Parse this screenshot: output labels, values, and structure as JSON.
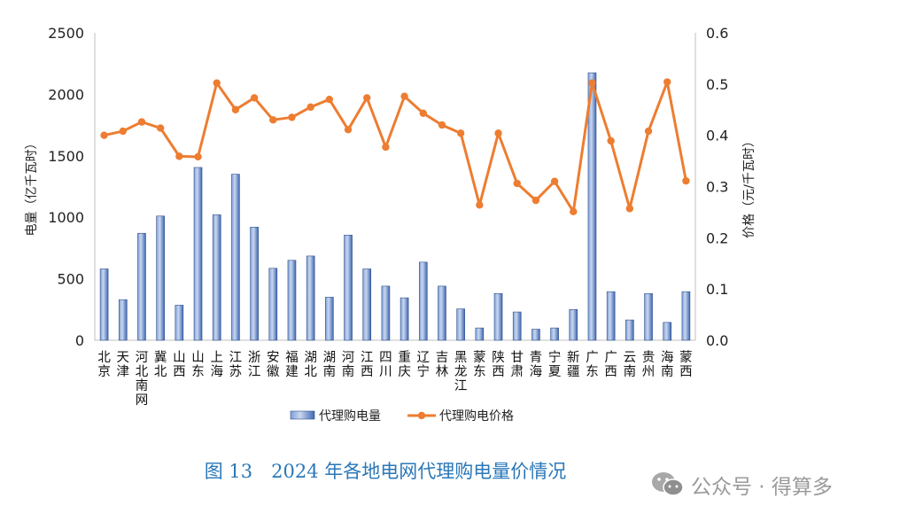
{
  "chart_data": {
    "type": "bar+line",
    "categories": [
      "北京",
      "天津",
      "河北南网",
      "冀北",
      "山西",
      "山东",
      "上海",
      "江苏",
      "浙江",
      "安徽",
      "福建",
      "湖北",
      "湖南",
      "河南",
      "江西",
      "四川",
      "重庆",
      "辽宁",
      "吉林",
      "黑龙江",
      "蒙东",
      "陕西",
      "甘肃",
      "青海",
      "宁夏",
      "新疆",
      "广东",
      "广西",
      "云南",
      "贵州",
      "海南",
      "蒙西"
    ],
    "series": [
      {
        "name": "代理购电量",
        "type": "bar",
        "axis": "left",
        "values": [
          580,
          330,
          870,
          1010,
          285,
          1405,
          1020,
          1350,
          920,
          585,
          650,
          685,
          350,
          855,
          580,
          440,
          345,
          635,
          440,
          255,
          100,
          380,
          230,
          90,
          100,
          250,
          2175,
          395,
          165,
          380,
          145,
          395
        ]
      },
      {
        "name": "代理购电价格",
        "type": "line",
        "axis": "right",
        "values": [
          0.4,
          0.408,
          0.426,
          0.414,
          0.359,
          0.358,
          0.502,
          0.45,
          0.473,
          0.43,
          0.435,
          0.455,
          0.47,
          0.411,
          0.473,
          0.377,
          0.476,
          0.443,
          0.42,
          0.404,
          0.264,
          0.404,
          0.306,
          0.273,
          0.31,
          0.251,
          0.502,
          0.389,
          0.257,
          0.408,
          0.504,
          0.311
        ]
      }
    ],
    "ylabel": "电量（亿千瓦时）",
    "y2label": "价格（元/千瓦时）",
    "ylim": [
      0,
      2500
    ],
    "y2lim": [
      0,
      0.6
    ],
    "yticks": [
      "0",
      "500",
      "1000",
      "1500",
      "2000",
      "2500"
    ],
    "y2ticks": [
      "0.0",
      "0.1",
      "0.2",
      "0.3",
      "0.4",
      "0.5",
      "0.6"
    ],
    "grid": false,
    "legend_position": "bottom",
    "colors": {
      "bar": "#4a72b8",
      "bar_light": "#c7d5ee",
      "line": "#ed7d31",
      "axis": "#bfbfbf"
    }
  },
  "caption": "图 13　2024 年各地电网代理购电量价情况",
  "watermark": "公众号 · 得算多"
}
